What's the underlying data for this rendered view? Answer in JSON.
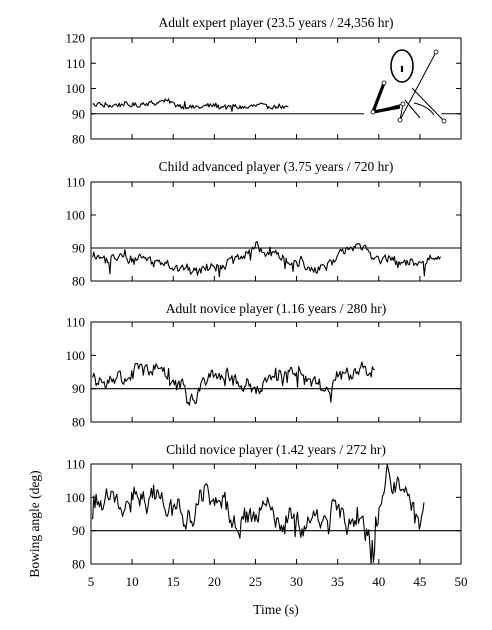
{
  "chart_data": {
    "type": "line",
    "xlabel": "Time (s)",
    "ylabel": "Bowing angle (deg)",
    "xlim": [
      5,
      50
    ],
    "x_ticks": [
      5,
      10,
      15,
      20,
      25,
      30,
      35,
      40,
      45,
      50
    ],
    "grid": false,
    "reference_angle": 90,
    "panels": [
      {
        "title": "Adult expert player (23.5 years / 24,356 hr)",
        "ylim": [
          80,
          120
        ],
        "y_ticks": [
          80,
          90,
          100,
          110,
          120
        ],
        "has_inset_diagram": true,
        "series": {
          "x_start": 5.2,
          "x_end": 29,
          "mean": 92.7,
          "jitter": 0.9,
          "wave_amp": 0.5,
          "spikes": 6,
          "spike_amp": 1.5,
          "keypoints": [
            [
              9,
              93.5
            ],
            [
              11.5,
              93.8
            ],
            [
              14,
              95
            ],
            [
              17,
              92.3
            ],
            [
              19,
              93.2
            ],
            [
              23,
              92.5
            ],
            [
              26,
              93.3
            ],
            [
              29,
              92.2
            ]
          ]
        }
      },
      {
        "title": "Child advanced player (3.75 years / 720 hr)",
        "ylim": [
          80,
          110
        ],
        "y_ticks": [
          80,
          90,
          100,
          110
        ],
        "has_inset_diagram": false,
        "series": {
          "x_start": 5.2,
          "x_end": 47.5,
          "mean": 86.3,
          "jitter": 1.2,
          "wave_amp": 1.0,
          "spikes": 10,
          "spike_amp": 2.8,
          "keypoints": [
            [
              12,
              86.8
            ],
            [
              17,
              83
            ],
            [
              22,
              85.5
            ],
            [
              25,
              90.2
            ],
            [
              29,
              86
            ],
            [
              33,
              83.3
            ],
            [
              37,
              91.3
            ],
            [
              40,
              86.8
            ],
            [
              44,
              85
            ],
            [
              47.5,
              87.5
            ]
          ]
        }
      },
      {
        "title": "Adult novice player (1.16 years / 280 hr)",
        "ylim": [
          80,
          110
        ],
        "y_ticks": [
          80,
          90,
          100,
          110
        ],
        "has_inset_diagram": false,
        "series": {
          "x_start": 5.2,
          "x_end": 39.5,
          "mean": 93.5,
          "jitter": 1.8,
          "wave_amp": 1.8,
          "spikes": 8,
          "spike_amp": 3.0,
          "keypoints": [
            [
              8,
              92.5
            ],
            [
              11,
              95.5
            ],
            [
              13,
              96.5
            ],
            [
              16,
              90
            ],
            [
              17,
              86
            ],
            [
              20,
              95.5
            ],
            [
              23,
              92
            ],
            [
              25,
              89.5
            ],
            [
              28,
              95
            ],
            [
              31,
              94.5
            ],
            [
              33,
              90
            ],
            [
              36,
              94.5
            ],
            [
              39.5,
              95.5
            ]
          ]
        }
      },
      {
        "title": "Child novice player (1.42 years / 272 hr)",
        "ylim": [
          80,
          110
        ],
        "y_ticks": [
          80,
          90,
          100,
          110
        ],
        "has_inset_diagram": false,
        "series": {
          "x_start": 5.2,
          "x_end": 45.5,
          "mean": 97.5,
          "jitter": 2.3,
          "wave_amp": 3.3,
          "spikes": 12,
          "spike_amp": 4.5,
          "keypoints": [
            [
              7,
              99.5
            ],
            [
              9,
              97
            ],
            [
              12,
              100.5
            ],
            [
              15,
              98
            ],
            [
              16.5,
              93
            ],
            [
              19,
              101
            ],
            [
              20.5,
              99
            ],
            [
              23,
              91
            ],
            [
              26,
              97.5
            ],
            [
              28,
              93
            ],
            [
              32,
              92
            ],
            [
              35,
              95.5
            ],
            [
              38,
              92
            ],
            [
              39.5,
              86
            ],
            [
              41,
              108
            ],
            [
              43,
              101
            ],
            [
              45.5,
              94.5
            ]
          ]
        }
      }
    ]
  }
}
